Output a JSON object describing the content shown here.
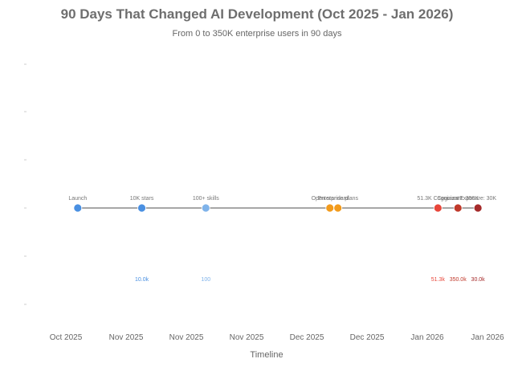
{
  "chart_data": {
    "type": "scatter",
    "title": "90 Days That Changed AI Development (Oct 2025 - Jan 2026)",
    "subtitle": "From 0 to 350K enterprise users in 90 days",
    "xlabel": "Timeline",
    "ylabel": "",
    "x_ticks": [
      "Oct 2025",
      "Nov 2025",
      "Nov 2025",
      "Nov 2025",
      "Dec 2025",
      "Dec 2025",
      "Jan 2026",
      "Jan 2026"
    ],
    "grid": false,
    "events": [
      {
        "date": "2025-10-16",
        "label": "Launch",
        "value_label": "",
        "color": "#4a90e2"
      },
      {
        "date": "2025-11-01",
        "label": "10K stars",
        "value_label": "10.0k",
        "color": "#4a90e2"
      },
      {
        "date": "2025-11-17",
        "label": "100+ skills",
        "value_label": "100",
        "color": "#7fb3ea"
      },
      {
        "date": "2025-12-18",
        "label": "Open standard",
        "value_label": "",
        "color": "#f29b1d"
      },
      {
        "date": "2025-12-20",
        "label": "Enterprise plans",
        "value_label": "",
        "color": "#f29b1d"
      },
      {
        "date": "2026-01-14",
        "label": "51.3K Cognizant",
        "value_label": "51.3k",
        "color": "#e8463a"
      },
      {
        "date": "2026-01-19",
        "label": "Cognizant: 350K",
        "value_label": "350.0k",
        "color": "#c0392b"
      },
      {
        "date": "2026-01-24",
        "label": "Exposure: 30K",
        "value_label": "30.0k",
        "color": "#a52a2a"
      }
    ]
  }
}
